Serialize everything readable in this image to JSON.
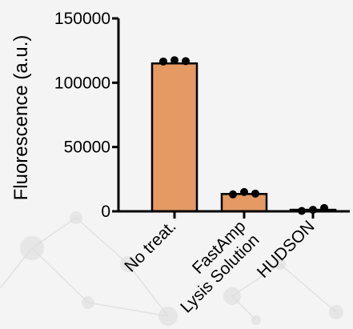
{
  "chart_data": {
    "type": "bar",
    "title": "",
    "xlabel": "",
    "ylabel": "Fluorescence (a.u.)",
    "ylim": [
      0,
      150000
    ],
    "yticks": [
      0,
      50000,
      100000,
      150000
    ],
    "categories": [
      {
        "lines": [
          "No treat."
        ]
      },
      {
        "lines": [
          "FastAmp",
          "Lysis Solution"
        ]
      },
      {
        "lines": [
          "HUDSON"
        ]
      }
    ],
    "values": [
      115000,
      13500,
      1200
    ],
    "points": [
      [
        116500,
        117500,
        116800
      ],
      [
        13200,
        15000,
        13800
      ],
      [
        300,
        1200,
        2600
      ]
    ],
    "grid": false,
    "legend": "none",
    "colors": {
      "bar_fill": "#e59963",
      "bar_stroke": "#000000",
      "point": "#000000",
      "axis": "#000000",
      "background": "#f4f4f4",
      "molecule_decor": "#dcdcdc"
    }
  }
}
